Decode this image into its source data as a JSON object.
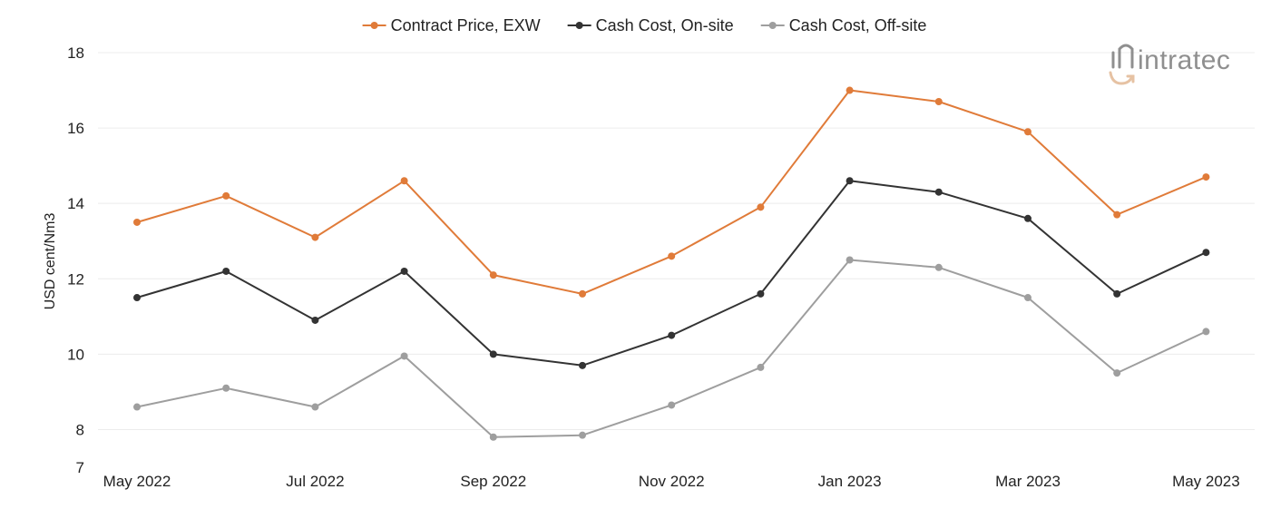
{
  "brand": {
    "logo_text": "intratec"
  },
  "chart_data": {
    "type": "line",
    "x": [
      "May 2022",
      "Jun 2022",
      "Jul 2022",
      "Aug 2022",
      "Sep 2022",
      "Oct 2022",
      "Nov 2022",
      "Dec 2022",
      "Jan 2023",
      "Feb 2023",
      "Mar 2023",
      "Apr 2023",
      "May 2023"
    ],
    "xtick_labels": [
      "May 2022",
      "Jul 2022",
      "Sep 2022",
      "Nov 2022",
      "Jan 2023",
      "Mar 2023",
      "May 2023"
    ],
    "ylabel": "USD cent/Nm3",
    "ylim": [
      7,
      18
    ],
    "yticks": [
      7,
      8,
      10,
      12,
      14,
      16,
      18
    ],
    "grid": true,
    "legend_position": "top-center",
    "series": [
      {
        "name": "Contract Price, EXW",
        "color": "#e07b39",
        "values": [
          13.5,
          14.2,
          13.1,
          14.6,
          12.1,
          11.6,
          12.6,
          13.9,
          17.0,
          16.7,
          15.9,
          13.7,
          14.7
        ]
      },
      {
        "name": "Cash Cost, On-site",
        "color": "#333333",
        "values": [
          11.5,
          12.2,
          10.9,
          12.2,
          10.0,
          9.7,
          10.5,
          11.6,
          14.6,
          14.3,
          13.6,
          11.6,
          12.7
        ]
      },
      {
        "name": "Cash Cost, Off-site",
        "color": "#9e9e9e",
        "values": [
          8.6,
          9.1,
          8.6,
          9.95,
          7.8,
          7.85,
          8.65,
          9.65,
          12.5,
          12.3,
          11.5,
          9.5,
          10.6
        ]
      }
    ]
  }
}
